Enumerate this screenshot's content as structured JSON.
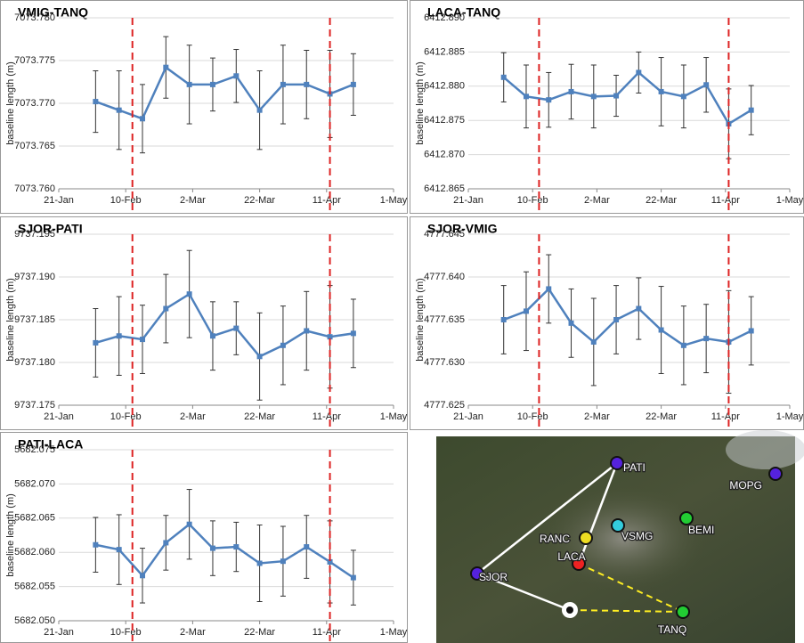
{
  "chart_data": [
    {
      "type": "line",
      "title": "VMIG-TANQ",
      "y_label": "baseline length (m)",
      "x": [
        "1-Feb",
        "8-Feb",
        "15-Feb",
        "22-Feb",
        "1-Mar",
        "8-Mar",
        "15-Mar",
        "22-Mar",
        "29-Mar",
        "5-Apr",
        "12-Apr",
        "19-Apr"
      ],
      "xlim": [
        "21-Jan",
        "1-May"
      ],
      "xticks": [
        "21-Jan",
        "10-Feb",
        "2-Mar",
        "22-Mar",
        "11-Apr",
        "1-May"
      ],
      "ylim": [
        7073.76,
        7073.78
      ],
      "yticks": [
        {
          "value": 7073.76,
          "label": "7073.760"
        },
        {
          "value": 7073.765,
          "label": "7073.765"
        },
        {
          "value": 7073.77,
          "label": "7073.770"
        },
        {
          "value": 7073.775,
          "label": "7073.775"
        },
        {
          "value": 7073.78,
          "label": "7073.780"
        }
      ],
      "grid": true,
      "events": [
        "12-Feb",
        "12-Apr"
      ],
      "event_color": "#dd2222",
      "series": [
        {
          "color": "#4f81bd",
          "values": [
            7073.7702,
            7073.7692,
            7073.7682,
            7073.7742,
            7073.7722,
            7073.7722,
            7073.7732,
            7073.7692,
            7073.7722,
            7073.7722,
            7073.7711,
            7073.7722
          ],
          "errors": [
            0.0036,
            0.0046,
            0.004,
            0.0036,
            0.0046,
            0.0031,
            0.0031,
            0.0046,
            0.0046,
            0.004,
            0.0051,
            0.0036
          ]
        }
      ]
    },
    {
      "type": "line",
      "title": "LACA-TANQ",
      "y_label": "baseline length (m)",
      "x": [
        "1-Feb",
        "8-Feb",
        "15-Feb",
        "22-Feb",
        "1-Mar",
        "8-Mar",
        "15-Mar",
        "22-Mar",
        "29-Mar",
        "5-Apr",
        "12-Apr",
        "19-Apr"
      ],
      "xlim": [
        "21-Jan",
        "1-May"
      ],
      "xticks": [
        "21-Jan",
        "10-Feb",
        "2-Mar",
        "22-Mar",
        "11-Apr",
        "1-May"
      ],
      "ylim": [
        6412.865,
        6412.89
      ],
      "yticks": [
        {
          "value": 6412.865,
          "label": "6412.865"
        },
        {
          "value": 6412.87,
          "label": "6412.870"
        },
        {
          "value": 6412.875,
          "label": "6412.875"
        },
        {
          "value": 6412.88,
          "label": "6412.880"
        },
        {
          "value": 6412.885,
          "label": "6412.885"
        },
        {
          "value": 6412.89,
          "label": "6412.890"
        }
      ],
      "grid": true,
      "events": [
        "12-Feb",
        "12-Apr"
      ],
      "event_color": "#dd2222",
      "series": [
        {
          "color": "#4f81bd",
          "values": [
            6412.8813,
            6412.8785,
            6412.878,
            6412.8792,
            6412.8785,
            6412.8786,
            6412.882,
            6412.8792,
            6412.8785,
            6412.8802,
            6412.8745,
            6412.8765
          ],
          "errors": [
            0.0036,
            0.0046,
            0.004,
            0.004,
            0.0046,
            0.003,
            0.003,
            0.005,
            0.0046,
            0.004,
            0.0051,
            0.0036
          ]
        }
      ]
    },
    {
      "type": "line",
      "title": "SJOR-PATI",
      "y_label": "baseline length (m)",
      "x": [
        "1-Feb",
        "8-Feb",
        "15-Feb",
        "22-Feb",
        "1-Mar",
        "8-Mar",
        "15-Mar",
        "22-Mar",
        "29-Mar",
        "5-Apr",
        "12-Apr",
        "19-Apr"
      ],
      "xlim": [
        "21-Jan",
        "1-May"
      ],
      "xticks": [
        "21-Jan",
        "10-Feb",
        "2-Mar",
        "22-Mar",
        "11-Apr",
        "1-May"
      ],
      "ylim": [
        9737.175,
        9737.195
      ],
      "yticks": [
        {
          "value": 9737.175,
          "label": "9737.175"
        },
        {
          "value": 9737.18,
          "label": "9737.180"
        },
        {
          "value": 9737.185,
          "label": "9737.185"
        },
        {
          "value": 9737.19,
          "label": "9737.190"
        },
        {
          "value": 9737.195,
          "label": "9737.195"
        }
      ],
      "grid": true,
      "events": [
        "12-Feb",
        "12-Apr"
      ],
      "event_color": "#dd2222",
      "series": [
        {
          "color": "#4f81bd",
          "values": [
            9737.1823,
            9737.1831,
            9737.1827,
            9737.1863,
            9737.188,
            9737.1831,
            9737.184,
            9737.1807,
            9737.182,
            9737.1837,
            9737.183,
            9737.1834
          ],
          "errors": [
            0.004,
            0.0046,
            0.004,
            0.004,
            0.0051,
            0.004,
            0.0031,
            0.0051,
            0.0046,
            0.0046,
            0.006,
            0.004
          ]
        }
      ]
    },
    {
      "type": "line",
      "title": "SJOR-VMIG",
      "y_label": "baseline length (m)",
      "x": [
        "1-Feb",
        "8-Feb",
        "15-Feb",
        "22-Feb",
        "1-Mar",
        "8-Mar",
        "15-Mar",
        "22-Mar",
        "29-Mar",
        "5-Apr",
        "12-Apr",
        "19-Apr"
      ],
      "xlim": [
        "21-Jan",
        "1-May"
      ],
      "xticks": [
        "21-Jan",
        "10-Feb",
        "2-Mar",
        "22-Mar",
        "11-Apr",
        "1-May"
      ],
      "ylim": [
        4777.625,
        4777.645
      ],
      "yticks": [
        {
          "value": 4777.625,
          "label": "4777.625"
        },
        {
          "value": 4777.63,
          "label": "4777.630"
        },
        {
          "value": 4777.635,
          "label": "4777.635"
        },
        {
          "value": 4777.64,
          "label": "4777.640"
        },
        {
          "value": 4777.645,
          "label": "4777.645"
        }
      ],
      "grid": true,
      "events": [
        "12-Feb",
        "12-Apr"
      ],
      "event_color": "#dd2222",
      "series": [
        {
          "color": "#4f81bd",
          "values": [
            4777.635,
            4777.636,
            4777.6386,
            4777.6346,
            4777.6324,
            4777.635,
            4777.6363,
            4777.6338,
            4777.632,
            4777.6328,
            4777.6324,
            4777.6337
          ],
          "errors": [
            0.004,
            0.0046,
            0.004,
            0.004,
            0.0051,
            0.004,
            0.0036,
            0.0051,
            0.0046,
            0.004,
            0.006,
            0.004
          ]
        }
      ]
    },
    {
      "type": "line",
      "title": "PATI-LACA",
      "y_label": "baseline length (m)",
      "x": [
        "1-Feb",
        "8-Feb",
        "15-Feb",
        "22-Feb",
        "1-Mar",
        "8-Mar",
        "15-Mar",
        "22-Mar",
        "29-Mar",
        "5-Apr",
        "12-Apr",
        "19-Apr"
      ],
      "xlim": [
        "21-Jan",
        "1-May"
      ],
      "xticks": [
        "21-Jan",
        "10-Feb",
        "2-Mar",
        "22-Mar",
        "11-Apr",
        "1-May"
      ],
      "ylim": [
        5682.05,
        5682.075
      ],
      "yticks": [
        {
          "value": 5682.05,
          "label": "5682.050"
        },
        {
          "value": 5682.055,
          "label": "5682.055"
        },
        {
          "value": 5682.06,
          "label": "5682.060"
        },
        {
          "value": 5682.065,
          "label": "5682.065"
        },
        {
          "value": 5682.07,
          "label": "5682.070"
        },
        {
          "value": 5682.075,
          "label": "5682.075"
        }
      ],
      "grid": true,
      "events": [
        "12-Feb",
        "12-Apr"
      ],
      "event_color": "#dd2222",
      "series": [
        {
          "color": "#4f81bd",
          "values": [
            5682.0611,
            5682.0604,
            5682.0566,
            5682.0614,
            5682.0641,
            5682.0606,
            5682.0608,
            5682.0584,
            5682.0587,
            5682.0608,
            5682.0586,
            5682.0563
          ],
          "errors": [
            0.004,
            0.0051,
            0.004,
            0.004,
            0.0051,
            0.004,
            0.0036,
            0.0056,
            0.0051,
            0.0046,
            0.006,
            0.004
          ]
        }
      ]
    }
  ],
  "map": {
    "stations": [
      {
        "name": "PATI"
      },
      {
        "name": "MOPG"
      },
      {
        "name": "BEMI"
      },
      {
        "name": "VSMG"
      },
      {
        "name": "RANC"
      },
      {
        "name": "LACA"
      },
      {
        "name": "SJOR"
      },
      {
        "name": "TANQ"
      }
    ]
  }
}
